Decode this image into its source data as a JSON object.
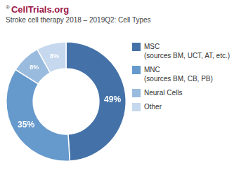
{
  "chart_data": {
    "type": "doughnut",
    "title": "CellTrials.org",
    "subtitle": "Stroke cell therapy 2018 – 2019Q2: Cell Types",
    "annotations": [
      "®"
    ],
    "categories": [
      "MSC\n(sources BM, UCT, AT, etc.)",
      "MNC\n(sources BM, CB, PB)",
      "Neural Cells",
      "Other"
    ],
    "values": [
      49,
      35,
      8,
      8
    ],
    "value_labels": [
      "49%",
      "35%",
      "8%",
      "8%"
    ],
    "colors": [
      "#4472a8",
      "#6699cc",
      "#99bbdd",
      "#c5d8ee"
    ],
    "data_labels": true,
    "legend": "right"
  }
}
